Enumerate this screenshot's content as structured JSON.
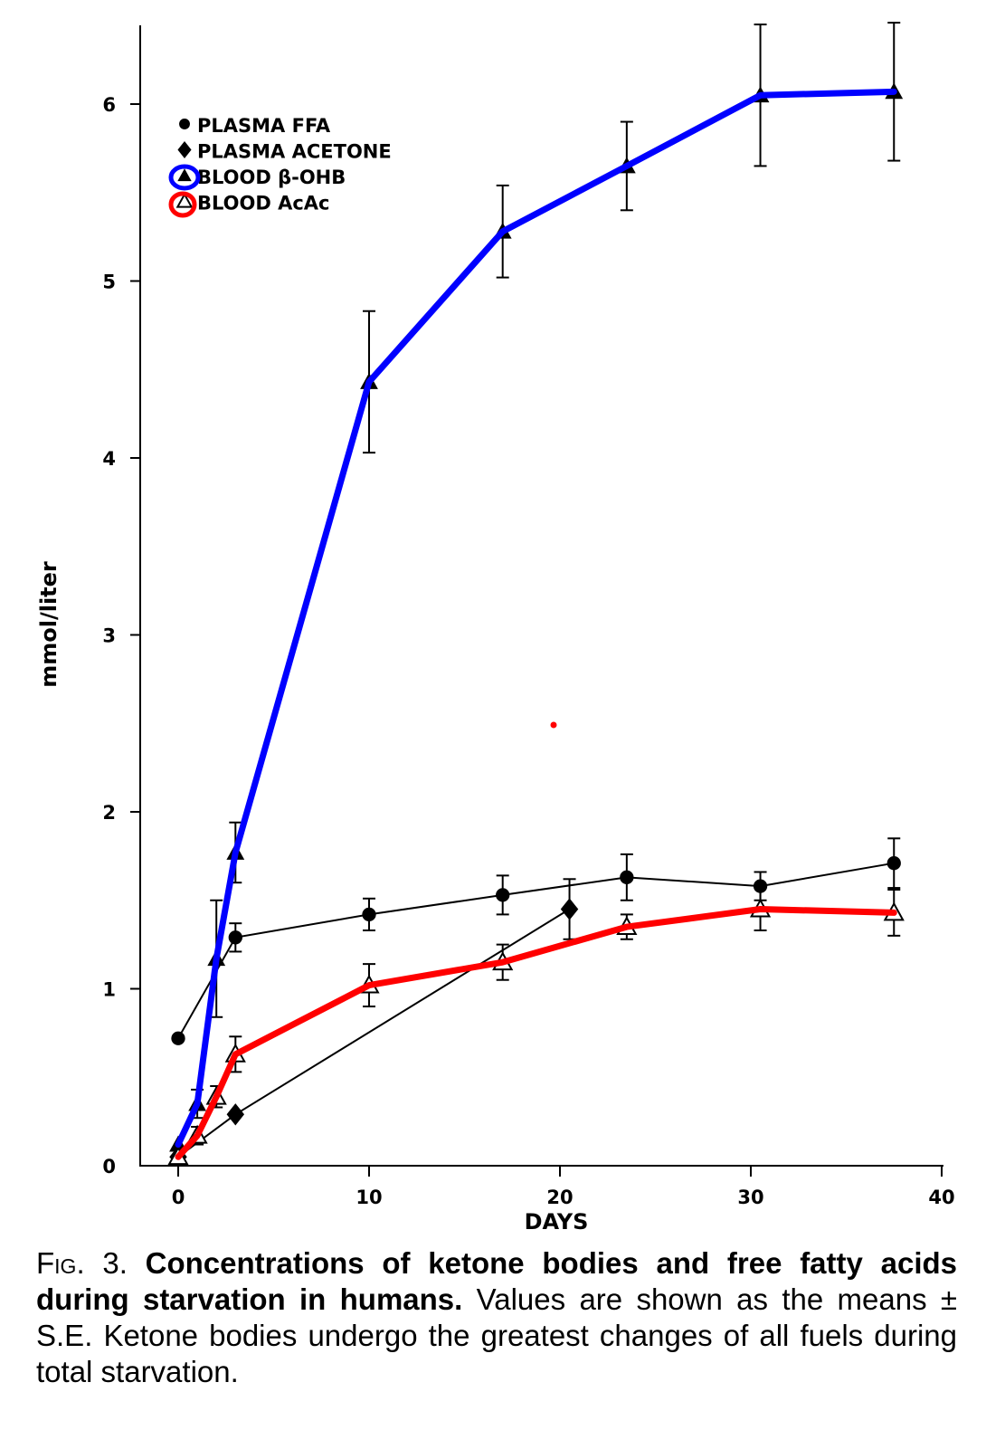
{
  "chart_data": {
    "type": "line",
    "xlabel": "DAYS",
    "ylabel": "mmol/liter",
    "xlim": [
      -2,
      40
    ],
    "ylim": [
      0,
      6.5
    ],
    "xticks": [
      0,
      10,
      20,
      30,
      40
    ],
    "yticks": [
      0,
      1,
      2,
      3,
      4,
      5,
      6
    ],
    "grid": false,
    "legend_position": "top-left",
    "series": [
      {
        "name": "PLASMA FFA",
        "marker": "filled-circle",
        "points": [
          {
            "x": 0,
            "y": 0.72,
            "err": 0
          },
          {
            "x": 3,
            "y": 1.29,
            "err": 0.08
          },
          {
            "x": 10,
            "y": 1.42,
            "err": 0.09
          },
          {
            "x": 17,
            "y": 1.53,
            "err": 0.11
          },
          {
            "x": 23.5,
            "y": 1.63,
            "err": 0.13
          },
          {
            "x": 30.5,
            "y": 1.58,
            "err": 0.08
          },
          {
            "x": 37.5,
            "y": 1.71,
            "err": 0.14
          }
        ]
      },
      {
        "name": "PLASMA ACETONE",
        "marker": "filled-diamond",
        "points": [
          {
            "x": 0,
            "y": 0.05,
            "err": 0
          },
          {
            "x": 3,
            "y": 0.29,
            "err": 0
          },
          {
            "x": 20.5,
            "y": 1.45,
            "err": 0.17
          }
        ]
      },
      {
        "name": "BLOOD β-OHB",
        "marker": "filled-triangle",
        "points": [
          {
            "x": 0,
            "y": 0.12,
            "err": 0
          },
          {
            "x": 1,
            "y": 0.35,
            "err": 0.08
          },
          {
            "x": 2,
            "y": 1.17,
            "err": 0.33
          },
          {
            "x": 3,
            "y": 1.77,
            "err": 0.17
          },
          {
            "x": 10,
            "y": 4.43,
            "err": 0.4
          },
          {
            "x": 17,
            "y": 5.28,
            "err": 0.26
          },
          {
            "x": 23.5,
            "y": 5.65,
            "err": 0.25
          },
          {
            "x": 30.5,
            "y": 6.05,
            "err": 0.4
          },
          {
            "x": 37.5,
            "y": 6.07,
            "err": 0.39
          }
        ]
      },
      {
        "name": "BLOOD AcAc",
        "marker": "open-triangle",
        "points": [
          {
            "x": 0,
            "y": 0.05,
            "err": 0
          },
          {
            "x": 1,
            "y": 0.17,
            "err": 0.05
          },
          {
            "x": 2,
            "y": 0.39,
            "err": 0.06
          },
          {
            "x": 3,
            "y": 0.63,
            "err": 0.1
          },
          {
            "x": 10,
            "y": 1.02,
            "err": 0.12
          },
          {
            "x": 17,
            "y": 1.15,
            "err": 0.1
          },
          {
            "x": 23.5,
            "y": 1.35,
            "err": 0.07
          },
          {
            "x": 30.5,
            "y": 1.45,
            "err": 0.12
          },
          {
            "x": 37.5,
            "y": 1.43,
            "err": 0.13
          }
        ]
      }
    ],
    "highlights": [
      {
        "series": "BLOOD β-OHB",
        "color": "#0000ff"
      },
      {
        "series": "BLOOD AcAc",
        "color": "#ff0000"
      }
    ]
  },
  "legend": {
    "items": [
      "PLASMA FFA",
      "PLASMA ACETONE",
      "BLOOD β-OHB",
      "BLOOD AcAc"
    ]
  },
  "caption": {
    "fig_label": "Fig. 3.",
    "bold_text": "Concentrations of ketone bodies and free fatty acids during starvation in humans.",
    "body_text": "Values are shown as the means ± S.E. Ketone bodies undergo the greatest changes of all fuels during total starvation."
  },
  "colors": {
    "ink": "#000000",
    "highlight_blue": "#0000ff",
    "highlight_red": "#ff0000"
  }
}
